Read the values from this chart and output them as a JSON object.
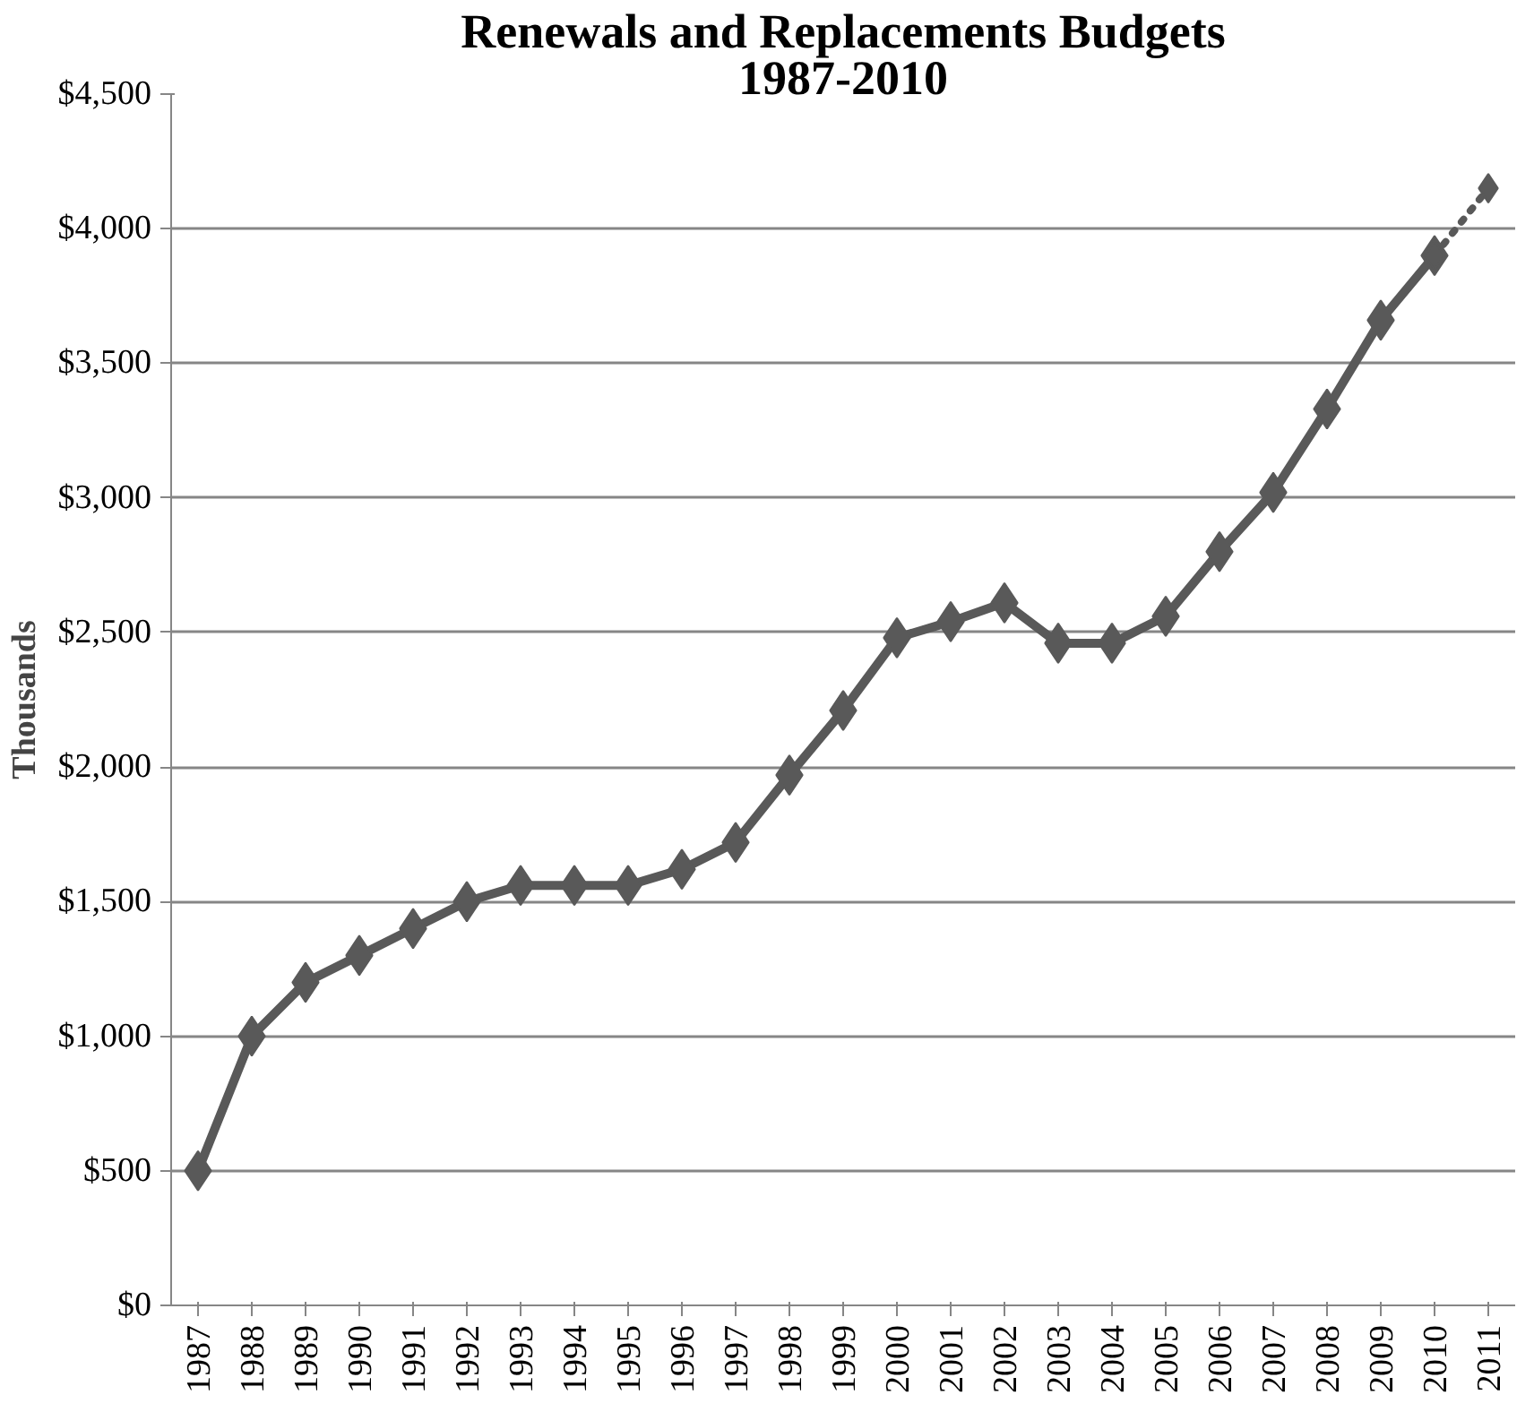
{
  "chart_data": {
    "type": "line",
    "title": "Renewals and Replacements Budgets",
    "subtitle": "1987-2010",
    "ylabel": "Thousands",
    "categories": [
      "1987",
      "1988",
      "1989",
      "1990",
      "1991",
      "1992",
      "1993",
      "1994",
      "1995",
      "1996",
      "1997",
      "1998",
      "1999",
      "2000",
      "2001",
      "2002",
      "2003",
      "2004",
      "2005",
      "2006",
      "2007",
      "2008",
      "2009",
      "2010",
      "2011"
    ],
    "series": [
      {
        "color": "#595959",
        "line_style": "solid",
        "values": [
          500,
          1000,
          1200,
          1300,
          1400,
          1500,
          1560,
          1560,
          1560,
          1620,
          1720,
          1970,
          2210,
          2480,
          2540,
          2610,
          2460,
          2460,
          2560,
          2800,
          3020,
          3330,
          3660,
          3900,
          null
        ]
      },
      {
        "color": "#595959",
        "line_style": "dotted",
        "values": [
          null,
          null,
          null,
          null,
          null,
          null,
          null,
          null,
          null,
          null,
          null,
          null,
          null,
          null,
          null,
          null,
          null,
          null,
          null,
          null,
          null,
          null,
          null,
          3900,
          4150
        ]
      }
    ],
    "ylim": [
      0,
      4500
    ],
    "yticks": [
      {
        "value": 0,
        "label": "$0"
      },
      {
        "value": 500,
        "label": "$500"
      },
      {
        "value": 1000,
        "label": "$1,000"
      },
      {
        "value": 1500,
        "label": "$1,500"
      },
      {
        "value": 2000,
        "label": "$2,000"
      },
      {
        "value": 2500,
        "label": "$2,500"
      },
      {
        "value": 3000,
        "label": "$3,000"
      },
      {
        "value": 3500,
        "label": "$3,500"
      },
      {
        "value": 4000,
        "label": "$4,000"
      },
      {
        "value": 4500,
        "label": "$4,500"
      }
    ],
    "grid": "y",
    "marker": "diamond"
  }
}
